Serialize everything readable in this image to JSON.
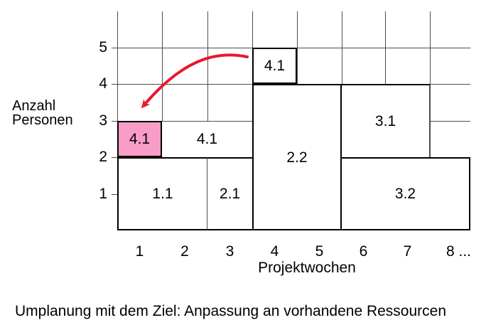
{
  "caption": "Umplanung mit dem Ziel: Anpassung an vorhandene Ressourcen",
  "axes": {
    "y_title_lines": [
      "Anzahl",
      "Personen"
    ],
    "x_title": "Projektwochen",
    "x_tick_labels": [
      "1",
      "2",
      "3",
      "4",
      "5",
      "6",
      "7",
      "8 ..."
    ],
    "y_tick_labels": [
      "1",
      "2",
      "3",
      "4",
      "5"
    ]
  },
  "colors": {
    "highlight_pink": "#f89cc8",
    "arrow_red": "#e9182c",
    "grid_gray": "#4d4d4d",
    "box_border_black": "#000000",
    "background": "#ffffff"
  },
  "chart_data": {
    "type": "bar",
    "variant": "project-resource-plan-blocks",
    "title": "",
    "xlabel": "Projektwochen",
    "ylabel": "Anzahl Personen",
    "x_ticks": [
      1,
      2,
      3,
      4,
      5,
      6,
      7,
      8
    ],
    "x_last_tick_label": "8 ...",
    "y_ticks": [
      1,
      2,
      3,
      4,
      5
    ],
    "xlim": [
      0,
      8
    ],
    "ylim": [
      0,
      6
    ],
    "grid": true,
    "blocks": [
      {
        "label": "1.1",
        "week_start": 1,
        "week_end": 2,
        "persons_from": 0,
        "persons_to": 2,
        "highlighted": false
      },
      {
        "label": "2.1",
        "week_start": 3,
        "week_end": 3,
        "persons_from": 0,
        "persons_to": 2,
        "highlighted": false
      },
      {
        "label": "4.1",
        "week_start": 1,
        "week_end": 1,
        "persons_from": 2,
        "persons_to": 3,
        "highlighted": true
      },
      {
        "label": "4.1",
        "week_start": 2,
        "week_end": 3,
        "persons_from": 2,
        "persons_to": 3,
        "highlighted": false
      },
      {
        "label": "2.2",
        "week_start": 4,
        "week_end": 5,
        "persons_from": 0,
        "persons_to": 4,
        "highlighted": false
      },
      {
        "label": "3.1",
        "week_start": 6,
        "week_end": 7,
        "persons_from": 2,
        "persons_to": 4,
        "highlighted": false
      },
      {
        "label": "3.2",
        "week_start": 6,
        "week_end": 8,
        "persons_from": 0,
        "persons_to": 2,
        "highlighted": false
      },
      {
        "label": "4.1",
        "week_start": 4,
        "week_end": 4,
        "persons_from": 4,
        "persons_to": 5,
        "highlighted": false
      }
    ],
    "annotation_arrow": {
      "from_week": 4,
      "from_persons": 4.75,
      "to_week": 1,
      "to_persons": 3.3,
      "color": "#e9182c",
      "description": "curved arrow from block 4.1 (week 4) to highlighted block 4.1 (week 1)"
    }
  }
}
